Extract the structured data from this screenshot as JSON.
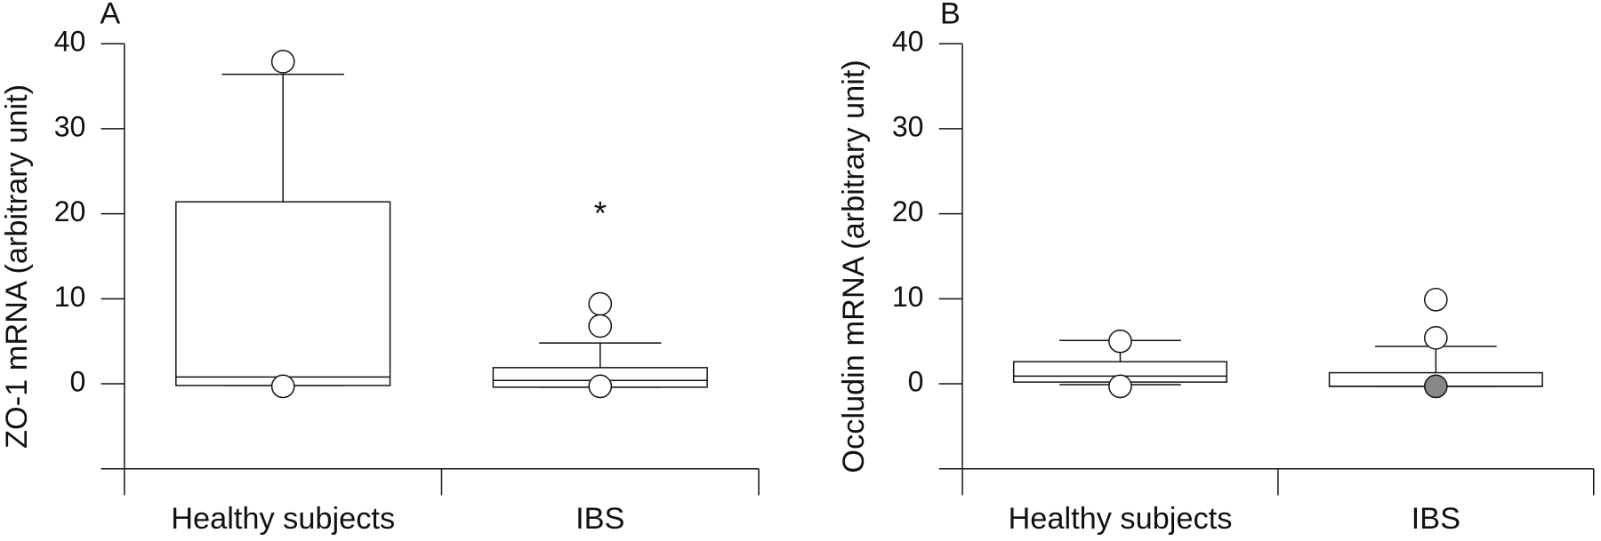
{
  "chart_data": [
    {
      "type": "box",
      "panel_label": "A",
      "y_label": "ZO-1 mRNA (arbitrary unit)",
      "categories": [
        "Healthy subjects",
        "IBS"
      ],
      "ylim": [
        -10,
        40
      ],
      "yticks": [
        0,
        10,
        20,
        30,
        40
      ],
      "box_color": "#ffffff",
      "boxes": [
        {
          "whisker_low": -0.2,
          "q1": -0.2,
          "median": 0.8,
          "q3": 21.4,
          "whisker_high": 36.4,
          "outliers": [
            37.9,
            -0.3
          ],
          "outlier_colors": [
            "#ffffff",
            "#ffffff"
          ]
        },
        {
          "whisker_low": -0.4,
          "q1": -0.4,
          "median": 0.4,
          "q3": 1.9,
          "whisker_high": 4.8,
          "outliers": [
            9.4,
            6.8,
            -0.3
          ],
          "outlier_colors": [
            "#ffffff",
            "#ffffff",
            "#ffffff"
          ],
          "annotation": {
            "text": "*",
            "y": 20.5
          }
        }
      ]
    },
    {
      "type": "box",
      "panel_label": "B",
      "y_label": "Occludin mRNA (arbitrary unit)",
      "categories": [
        "Healthy subjects",
        "IBS"
      ],
      "ylim": [
        -10,
        40
      ],
      "yticks": [
        0,
        10,
        20,
        30,
        40
      ],
      "box_color": "#ffffff",
      "boxes": [
        {
          "whisker_low": -0.1,
          "q1": 0.2,
          "median": 0.9,
          "q3": 2.6,
          "whisker_high": 5.1,
          "outliers": [
            5.0,
            -0.3
          ],
          "outlier_colors": [
            "#ffffff",
            "#ffffff"
          ]
        },
        {
          "whisker_low": -0.3,
          "q1": -0.3,
          "median": -0.3,
          "q3": 1.3,
          "whisker_high": 4.4,
          "outliers": [
            9.9,
            5.4,
            -0.3
          ],
          "outlier_colors": [
            "#ffffff",
            "#ffffff",
            "#888888"
          ]
        }
      ]
    }
  ]
}
